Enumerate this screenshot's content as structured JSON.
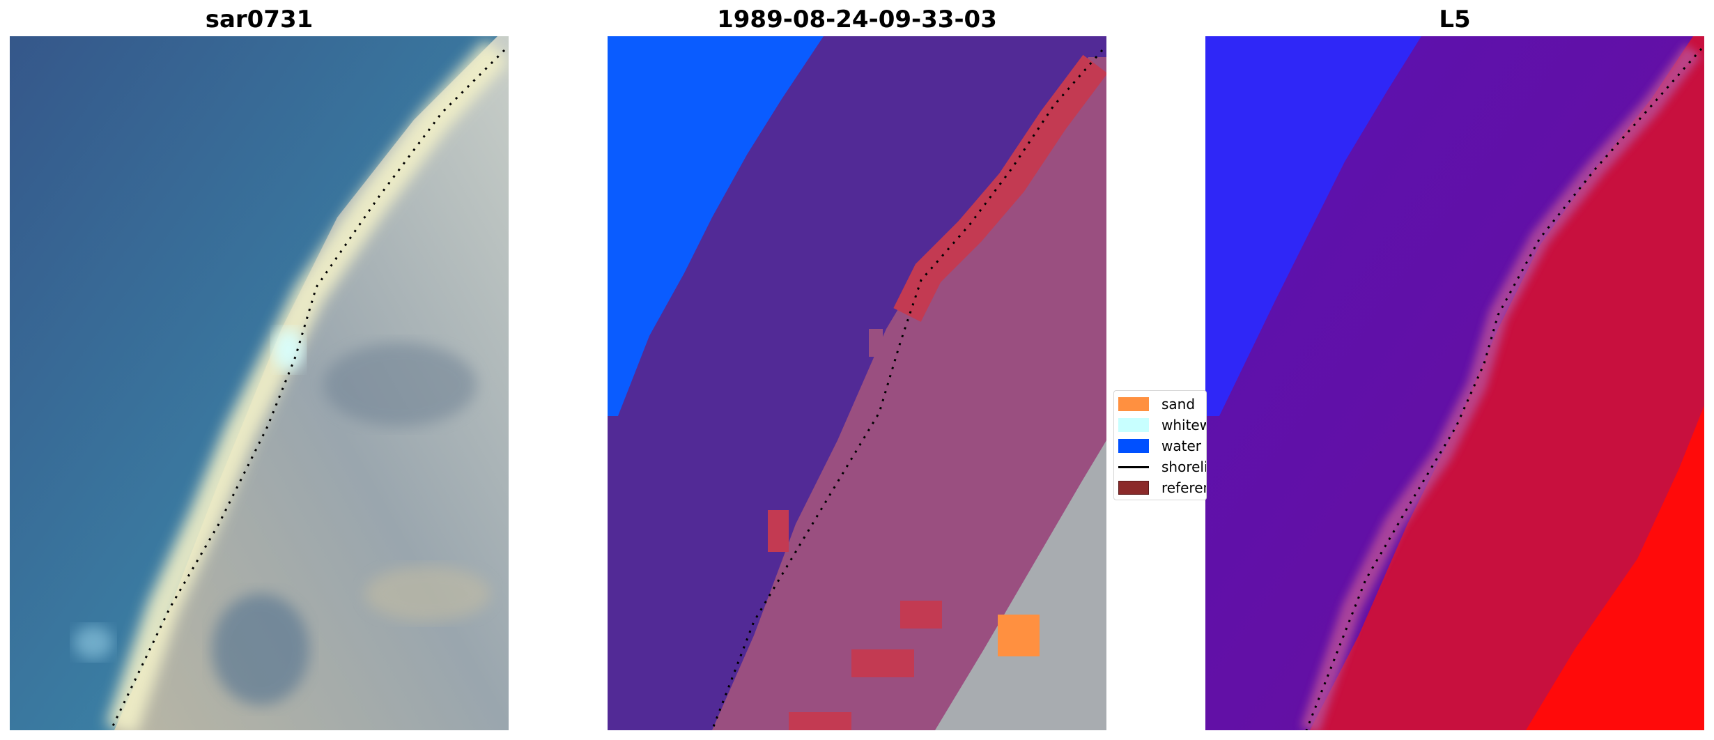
{
  "panels": [
    {
      "title": "sar0731"
    },
    {
      "title": "1989-08-24-09-33-03"
    },
    {
      "title": "L5"
    }
  ],
  "legend": {
    "items": [
      {
        "label": "sand",
        "color": "#ff9040",
        "kind": "patch"
      },
      {
        "label": "whitewater",
        "color": "#c8ffff",
        "kind": "patch"
      },
      {
        "label": "water",
        "color": "#0050ff",
        "kind": "patch"
      },
      {
        "label": "shoreline",
        "color": "#000000",
        "kind": "line"
      },
      {
        "label": "reference",
        "color": "#8b2a2a",
        "kind": "patch"
      }
    ]
  },
  "colors": {
    "rgb_water": "#3a7aa0",
    "rgb_surf": "#f2f0c8",
    "rgb_land": "#9aa4a8",
    "class_water": "#0a5cff",
    "class_sea": "#522a96",
    "class_land": "#9a4f80",
    "class_reference": "#c33a52",
    "class_sand": "#ff9040",
    "index_blue": "#2a2aff",
    "index_purple": "#6410a8",
    "index_red": "#c8103e",
    "index_bright_red": "#ff0a0a"
  }
}
